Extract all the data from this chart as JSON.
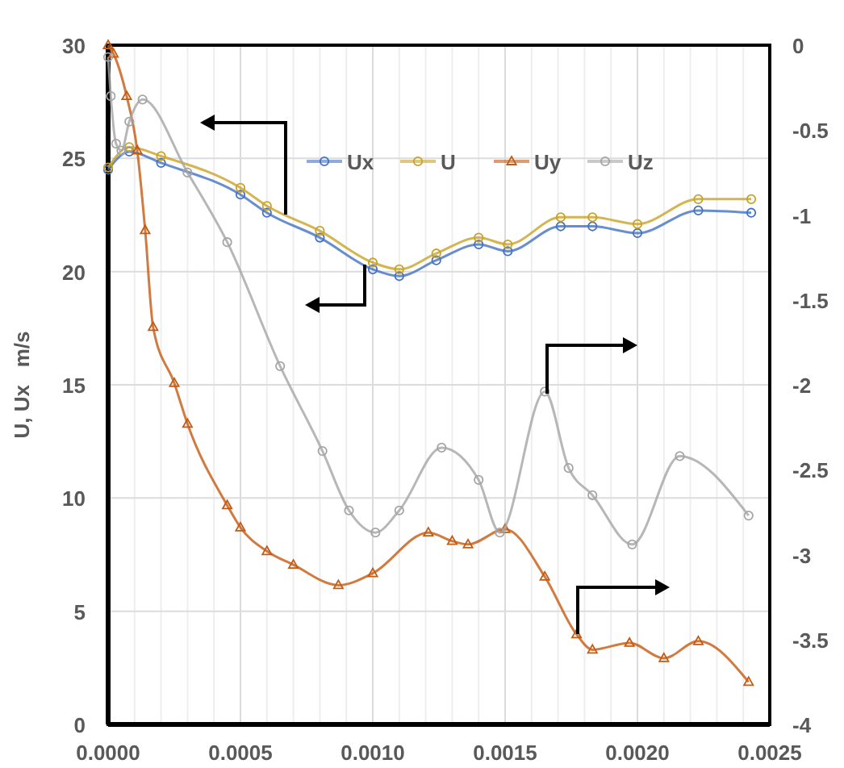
{
  "chart_data": {
    "type": "line",
    "ylabel": "U, Ux   m/s",
    "xlim": [
      0,
      0.0025
    ],
    "xticks": [
      {
        "value": 0,
        "label": "0.0000"
      },
      {
        "value": 0.0001,
        "label": null
      },
      {
        "value": 0.0002,
        "label": null
      },
      {
        "value": 0.0003,
        "label": null
      },
      {
        "value": 0.0004,
        "label": null
      },
      {
        "value": 0.0005,
        "label": "0.0005"
      },
      {
        "value": 0.0006,
        "label": null
      },
      {
        "value": 0.0007,
        "label": null
      },
      {
        "value": 0.0008,
        "label": null
      },
      {
        "value": 0.0009,
        "label": null
      },
      {
        "value": 0.001,
        "label": "0.0010"
      },
      {
        "value": 0.0011,
        "label": null
      },
      {
        "value": 0.0012,
        "label": null
      },
      {
        "value": 0.0013,
        "label": null
      },
      {
        "value": 0.0014,
        "label": null
      },
      {
        "value": 0.0015,
        "label": "0.0015"
      },
      {
        "value": 0.0016,
        "label": null
      },
      {
        "value": 0.0017,
        "label": null
      },
      {
        "value": 0.0018,
        "label": null
      },
      {
        "value": 0.0019,
        "label": null
      },
      {
        "value": 0.002,
        "label": "0.0020"
      },
      {
        "value": 0.0021,
        "label": null
      },
      {
        "value": 0.0022,
        "label": null
      },
      {
        "value": 0.0023,
        "label": null
      },
      {
        "value": 0.0024,
        "label": null
      },
      {
        "value": 0.0025,
        "label": "0.0025"
      }
    ],
    "ylim": [
      0,
      30
    ],
    "yticks": [
      0,
      5,
      10,
      15,
      20,
      25,
      30
    ],
    "y2lim": [
      -4,
      0
    ],
    "y2ticks": [
      -4,
      -3.5,
      -3,
      -2.5,
      -2,
      -1.5,
      -1,
      -0.5,
      0
    ],
    "grid": true,
    "legend": "top",
    "line_style": "solid",
    "series": [
      {
        "name": "Ux",
        "color": "#4472c4",
        "marker": "circle",
        "x": [
          0,
          8e-05,
          0.0002,
          0.0005,
          0.0006,
          0.0008,
          0.001,
          0.0011,
          0.00124,
          0.0014,
          0.00151,
          0.00171,
          0.00183,
          0.002,
          0.00223,
          0.00243
        ],
        "values": [
          24.5,
          25.3,
          24.8,
          23.4,
          22.6,
          21.5,
          20.1,
          19.8,
          20.5,
          21.2,
          20.9,
          22.0,
          22.0,
          21.7,
          22.7,
          22.6
        ]
      },
      {
        "name": "U",
        "color": "#c9a227",
        "marker": "circle",
        "x": [
          0,
          8e-05,
          0.0002,
          0.0005,
          0.0006,
          0.0008,
          0.001,
          0.0011,
          0.00124,
          0.0014,
          0.00151,
          0.00171,
          0.00183,
          0.002,
          0.00223,
          0.00243
        ],
        "values": [
          24.6,
          25.5,
          25.1,
          23.7,
          22.9,
          21.8,
          20.4,
          20.1,
          20.8,
          21.5,
          21.2,
          22.4,
          22.4,
          22.1,
          23.2,
          23.2
        ]
      },
      {
        "name": "Uy",
        "color": "#c55a11",
        "marker": "triangle",
        "axis": "y2",
        "x": [
          0,
          2e-05,
          7e-05,
          0.00011,
          0.00014,
          0.00017,
          0.00025,
          0.0003,
          0.00045,
          0.0005,
          0.0006,
          0.0007,
          0.00087,
          0.001,
          0.00121,
          0.0013,
          0.00136,
          0.0015,
          0.00165,
          0.00177,
          0.00183,
          0.00197,
          0.0021,
          0.00223,
          0.00242
        ],
        "values": [
          0,
          -0.05,
          -0.3,
          -0.62,
          -1.09,
          -1.66,
          -1.99,
          -2.23,
          -2.71,
          -2.84,
          -2.98,
          -3.06,
          -3.18,
          -3.11,
          -2.87,
          -2.92,
          -2.94,
          -2.85,
          -3.13,
          -3.47,
          -3.56,
          -3.52,
          -3.61,
          -3.51,
          -3.75
        ]
      },
      {
        "name": "Uz",
        "color": "#a5a5a5",
        "marker": "circle",
        "axis": "y2",
        "x": [
          0,
          1e-05,
          3e-05,
          5e-05,
          8e-05,
          0.00013,
          0.0003,
          0.00045,
          0.00065,
          0.00081,
          0.00091,
          0.00101,
          0.0011,
          0.00126,
          0.0014,
          0.00148,
          0.00165,
          0.00174,
          0.00183,
          0.00198,
          0.00216,
          0.00242
        ],
        "values": [
          -0.07,
          -0.3,
          -0.58,
          -0.62,
          -0.45,
          -0.32,
          -0.75,
          -1.16,
          -1.89,
          -2.39,
          -2.74,
          -2.87,
          -2.74,
          -2.37,
          -2.56,
          -2.87,
          -2.04,
          -2.49,
          -2.65,
          -2.94,
          -2.42,
          -2.77
        ]
      }
    ]
  }
}
